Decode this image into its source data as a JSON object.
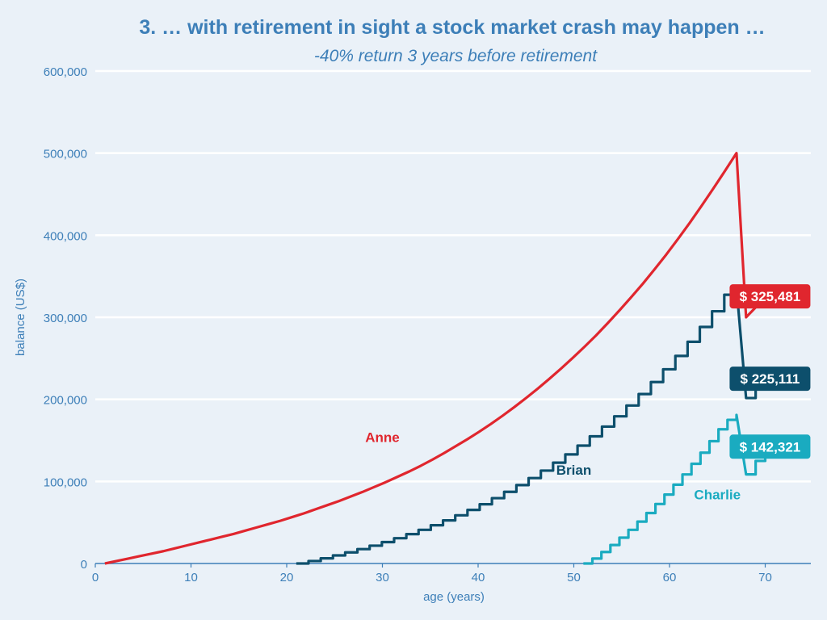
{
  "chart_data": {
    "type": "line",
    "title": "3. … with retirement in sight a stock market crash may happen …",
    "subtitle": "-40% return 3 years before retirement",
    "xlabel": "age (years)",
    "ylabel": "balance (US$)",
    "xlim": [
      0,
      75
    ],
    "ylim": [
      0,
      600000
    ],
    "x_ticks": [
      0,
      10,
      20,
      30,
      40,
      50,
      60,
      70
    ],
    "x_tick_labels": [
      "0",
      "10",
      "20",
      "30",
      "40",
      "50",
      "60",
      "70"
    ],
    "y_ticks": [
      0,
      100000,
      200000,
      300000,
      400000,
      500000,
      600000
    ],
    "y_tick_labels": [
      "0",
      "100,000",
      "200,000",
      "300,000",
      "400,000",
      "500,000",
      "600,000"
    ],
    "grid": "horizontal",
    "legend": "none (direct labels)",
    "series": [
      {
        "name": "Anne",
        "color": "#e0262e",
        "start_age": 1,
        "values": [
          0,
          3000,
          6000,
          9000,
          12000,
          15000,
          18500,
          22000,
          25500,
          29000,
          32500,
          36000,
          40000,
          44000,
          48000,
          52000,
          56500,
          61000,
          66000,
          71000,
          76000,
          81500,
          87000,
          93000,
          99000,
          105500,
          112000,
          119000,
          126500,
          134500,
          143000,
          151500,
          160500,
          170000,
          180000,
          190500,
          201500,
          213000,
          225000,
          237500,
          250500,
          264000,
          278000,
          293000,
          308500,
          324500,
          341000,
          358500,
          376500,
          395500,
          415000,
          435500,
          456500,
          478000,
          500000,
          300000,
          312000,
          325481
        ],
        "end_value": 325481,
        "end_label": "$ 325,481"
      },
      {
        "name": "Brian",
        "color": "#0d4f6c",
        "start_age": 21,
        "values": [
          0,
          3000,
          6300,
          9800,
          13500,
          17500,
          21700,
          26100,
          30800,
          35800,
          41000,
          46600,
          52500,
          58700,
          65300,
          72200,
          79600,
          87300,
          95500,
          104100,
          113200,
          122800,
          132900,
          143600,
          154900,
          166800,
          179300,
          192500,
          206400,
          221100,
          236600,
          252900,
          270100,
          288200,
          307300,
          327400,
          336000,
          201600,
          213000,
          225111
        ],
        "end_value": 225111,
        "end_label": "$ 225,111"
      },
      {
        "name": "Charlie",
        "color": "#1aabc0",
        "start_age": 51,
        "values": [
          0,
          6000,
          14000,
          22500,
          31500,
          41000,
          51000,
          61500,
          72500,
          84000,
          96000,
          108500,
          121500,
          135000,
          149000,
          163500,
          175000,
          181000,
          108600,
          125000,
          142321
        ],
        "end_value": 142321,
        "end_label": "$ 142,321"
      }
    ],
    "annotations": [
      {
        "text": "Anne",
        "x": 30,
        "y": 148000,
        "color": "#e0262e"
      },
      {
        "text": "Brian",
        "x": 50,
        "y": 108000,
        "color": "#0d4f6c"
      },
      {
        "text": "Charlie",
        "x": 65,
        "y": 78000,
        "color": "#1aabc0"
      }
    ]
  }
}
